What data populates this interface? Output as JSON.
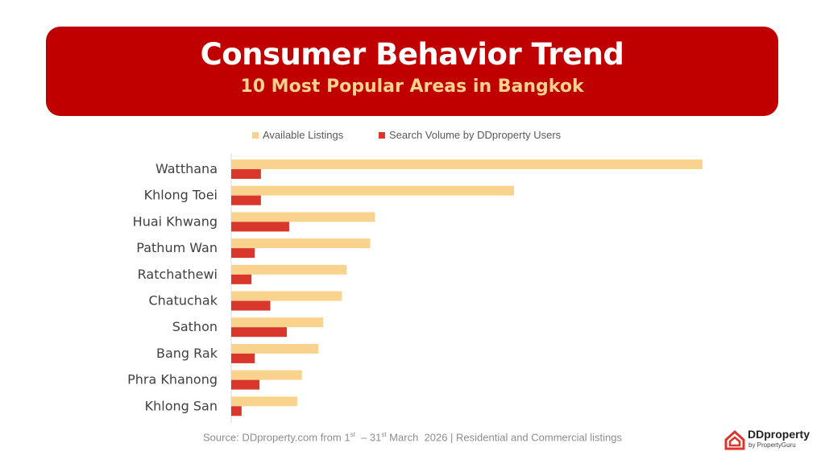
{
  "header": {
    "title": "Consumer Behavior Trend",
    "subtitle": "10 Most Popular Areas in Bangkok"
  },
  "legend": {
    "items": [
      {
        "label": "Available Listings",
        "color": "#f9d38e"
      },
      {
        "label": "Search Volume by DDproperty Users",
        "color": "#d9362c"
      }
    ]
  },
  "chart_data": {
    "type": "bar",
    "orientation": "horizontal",
    "categories": [
      "Watthana",
      "Khlong Toei",
      "Huai Khwang",
      "Pathum Wan",
      "Ratchathewi",
      "Chatuchak",
      "Sathon",
      "Bang Rak",
      "Phra Khanong",
      "Khlong San"
    ],
    "series": [
      {
        "name": "Available Listings",
        "color": "#f9d38e",
        "values": [
          100,
          60,
          30.5,
          29.5,
          24.5,
          23.5,
          19.5,
          18.5,
          15,
          14
        ]
      },
      {
        "name": "Search Volume by DDproperty Users",
        "color": "#d9362c",
        "values": [
          6.3,
          6.3,
          12.3,
          5,
          4.3,
          8.3,
          11.8,
          5,
          6,
          2.2
        ]
      }
    ],
    "xlim": [
      0,
      100
    ],
    "axis_labels_shown": false,
    "grid": false,
    "legend_position": "top"
  },
  "footer": {
    "source_prefix": "Source: DDproperty.com from 1",
    "sup1": "st",
    "source_mid": "  – 31",
    "sup2": "st",
    "source_suffix": " March  2026 | Residential and Commercial listings"
  },
  "logo": {
    "brand": "DDproperty",
    "byline": "by PropertyGuru",
    "icon": "ddproperty-logo-icon",
    "color": "#d9362c"
  }
}
